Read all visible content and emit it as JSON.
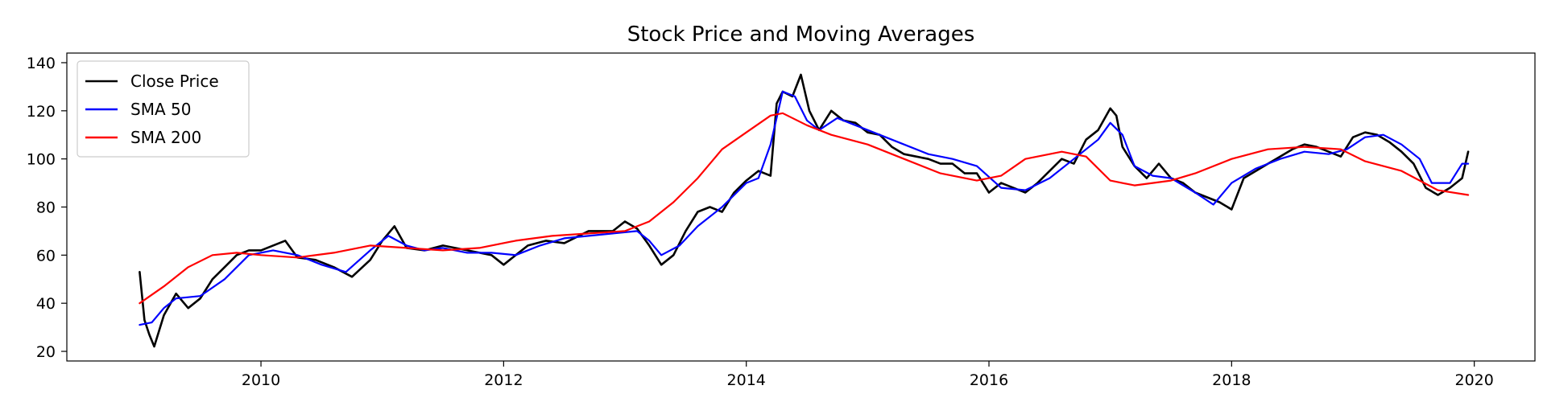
{
  "chart_data": {
    "type": "line",
    "title": "Stock Price and Moving Averages",
    "xlabel": "",
    "ylabel": "",
    "xlim": [
      2008.4,
      2020.5
    ],
    "ylim": [
      16,
      144
    ],
    "x_ticks": [
      2010,
      2012,
      2014,
      2016,
      2018,
      2020
    ],
    "x_tick_labels": [
      "2010",
      "2012",
      "2014",
      "2016",
      "2018",
      "2020"
    ],
    "y_ticks": [
      20,
      40,
      60,
      80,
      100,
      120,
      140
    ],
    "y_tick_labels": [
      "20",
      "40",
      "60",
      "80",
      "100",
      "120",
      "140"
    ],
    "grid": false,
    "legend_position": "upper-left",
    "series": [
      {
        "name": "Close Price",
        "color": "#000000",
        "x": [
          2009.0,
          2009.04,
          2009.08,
          2009.12,
          2009.2,
          2009.3,
          2009.4,
          2009.5,
          2009.6,
          2009.7,
          2009.8,
          2009.9,
          2010.0,
          2010.1,
          2010.2,
          2010.3,
          2010.45,
          2010.6,
          2010.75,
          2010.9,
          2011.0,
          2011.1,
          2011.2,
          2011.35,
          2011.5,
          2011.7,
          2011.9,
          2012.0,
          2012.1,
          2012.2,
          2012.35,
          2012.5,
          2012.7,
          2012.9,
          2013.0,
          2013.1,
          2013.2,
          2013.3,
          2013.4,
          2013.5,
          2013.6,
          2013.7,
          2013.8,
          2013.9,
          2014.0,
          2014.1,
          2014.2,
          2014.25,
          2014.3,
          2014.38,
          2014.45,
          2014.52,
          2014.6,
          2014.7,
          2014.8,
          2014.9,
          2015.0,
          2015.1,
          2015.2,
          2015.3,
          2015.4,
          2015.5,
          2015.6,
          2015.7,
          2015.8,
          2015.9,
          2016.0,
          2016.1,
          2016.2,
          2016.3,
          2016.4,
          2016.5,
          2016.6,
          2016.7,
          2016.8,
          2016.9,
          2017.0,
          2017.05,
          2017.1,
          2017.2,
          2017.3,
          2017.4,
          2017.5,
          2017.6,
          2017.7,
          2017.8,
          2017.9,
          2018.0,
          2018.1,
          2018.2,
          2018.3,
          2018.4,
          2018.5,
          2018.6,
          2018.7,
          2018.8,
          2018.9,
          2019.0,
          2019.1,
          2019.2,
          2019.3,
          2019.4,
          2019.5,
          2019.6,
          2019.7,
          2019.8,
          2019.9,
          2019.95
        ],
        "values": [
          53,
          33,
          27,
          22,
          35,
          44,
          38,
          42,
          50,
          55,
          60,
          62,
          62,
          64,
          66,
          59,
          58,
          55,
          51,
          58,
          66,
          72,
          63,
          62,
          64,
          62,
          60,
          56,
          60,
          64,
          66,
          65,
          70,
          70,
          74,
          71,
          64,
          56,
          60,
          70,
          78,
          80,
          78,
          86,
          91,
          95,
          93,
          123,
          128,
          126,
          135,
          120,
          112,
          120,
          116,
          115,
          111,
          110,
          105,
          102,
          101,
          100,
          98,
          98,
          94,
          94,
          86,
          90,
          88,
          86,
          90,
          95,
          100,
          98,
          108,
          112,
          121,
          118,
          105,
          97,
          92,
          98,
          92,
          90,
          86,
          84,
          82,
          79,
          92,
          95,
          98,
          101,
          104,
          106,
          105,
          103,
          101,
          109,
          111,
          110,
          107,
          103,
          98,
          88,
          85,
          88,
          92,
          103
        ]
      },
      {
        "name": "SMA 50",
        "color": "#0000ff",
        "x": [
          2009.0,
          2009.1,
          2009.2,
          2009.3,
          2009.5,
          2009.7,
          2009.9,
          2010.1,
          2010.3,
          2010.5,
          2010.7,
          2010.9,
          2011.05,
          2011.2,
          2011.35,
          2011.5,
          2011.7,
          2011.9,
          2012.1,
          2012.3,
          2012.5,
          2012.7,
          2012.9,
          2013.1,
          2013.2,
          2013.3,
          2013.45,
          2013.6,
          2013.8,
          2014.0,
          2014.1,
          2014.2,
          2014.3,
          2014.4,
          2014.5,
          2014.6,
          2014.75,
          2014.9,
          2015.1,
          2015.3,
          2015.5,
          2015.7,
          2015.9,
          2016.1,
          2016.3,
          2016.5,
          2016.7,
          2016.9,
          2017.0,
          2017.1,
          2017.2,
          2017.35,
          2017.5,
          2017.7,
          2017.85,
          2018.0,
          2018.2,
          2018.4,
          2018.6,
          2018.8,
          2018.95,
          2019.1,
          2019.25,
          2019.4,
          2019.55,
          2019.65,
          2019.8,
          2019.9,
          2019.95
        ],
        "values": [
          31,
          32,
          38,
          42,
          43,
          50,
          60,
          62,
          60,
          56,
          53,
          62,
          68,
          64,
          62,
          63,
          61,
          61,
          60,
          64,
          67,
          68,
          69,
          70,
          66,
          60,
          64,
          72,
          80,
          90,
          92,
          106,
          128,
          126,
          116,
          112,
          117,
          114,
          110,
          106,
          102,
          100,
          97,
          88,
          87,
          92,
          100,
          108,
          115,
          110,
          97,
          93,
          92,
          86,
          81,
          90,
          96,
          100,
          103,
          102,
          104,
          109,
          110,
          106,
          100,
          90,
          90,
          98,
          98
        ]
      },
      {
        "name": "SMA 200",
        "color": "#ff0000",
        "x": [
          2009.0,
          2009.2,
          2009.4,
          2009.6,
          2009.8,
          2010.0,
          2010.3,
          2010.6,
          2010.9,
          2011.2,
          2011.5,
          2011.8,
          2012.1,
          2012.4,
          2012.7,
          2013.0,
          2013.2,
          2013.4,
          2013.6,
          2013.8,
          2014.0,
          2014.2,
          2014.3,
          2014.5,
          2014.7,
          2015.0,
          2015.3,
          2015.6,
          2015.9,
          2016.1,
          2016.3,
          2016.6,
          2016.8,
          2017.0,
          2017.2,
          2017.5,
          2017.7,
          2018.0,
          2018.3,
          2018.6,
          2018.9,
          2019.1,
          2019.4,
          2019.7,
          2019.95
        ],
        "values": [
          40,
          47,
          55,
          60,
          61,
          60,
          59,
          61,
          64,
          63,
          62,
          63,
          66,
          68,
          69,
          70,
          74,
          82,
          92,
          104,
          111,
          118,
          119,
          114,
          110,
          106,
          100,
          94,
          91,
          93,
          100,
          103,
          101,
          91,
          89,
          91,
          94,
          100,
          104,
          105,
          104,
          99,
          95,
          87,
          85
        ]
      }
    ]
  }
}
